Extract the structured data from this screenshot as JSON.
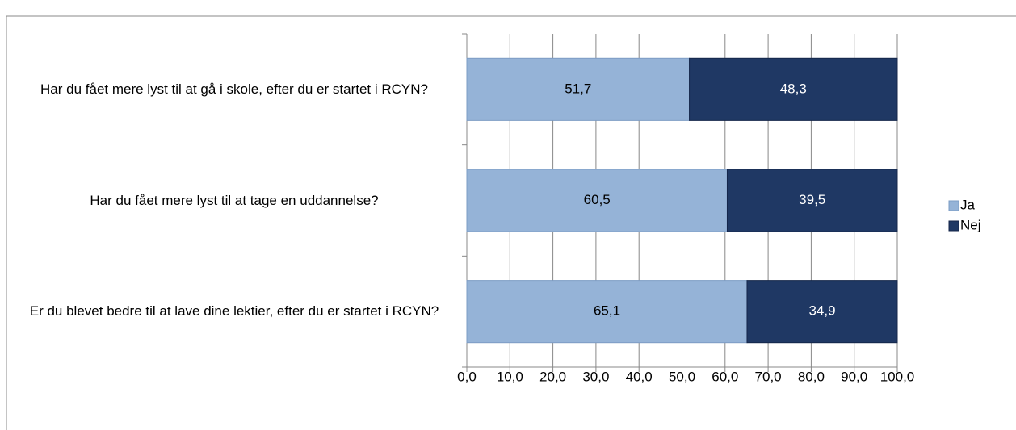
{
  "chart_data": {
    "type": "stacked_bar_horizontal",
    "categories": [
      "Har du fået mere lyst til at gå i skole, efter du er startet i RCYN?",
      "Har du fået mere lyst til at tage en uddannelse?",
      "Er du blevet bedre til at lave dine lektier, efter du er startet i RCYN?"
    ],
    "series": [
      {
        "name": "Ja",
        "color": "#95b3d7",
        "values": [
          51.7,
          60.5,
          65.1
        ],
        "value_labels": [
          "51,7",
          "60,5",
          "65,1"
        ]
      },
      {
        "name": "Nej",
        "color": "#1f3864",
        "values": [
          48.3,
          39.5,
          34.9
        ],
        "value_labels": [
          "48,3",
          "39,5",
          "34,9"
        ]
      }
    ],
    "xlim": [
      0,
      100
    ],
    "xticks": [
      {
        "value": 0,
        "label": "0,0"
      },
      {
        "value": 10,
        "label": "10,0"
      },
      {
        "value": 20,
        "label": "20,0"
      },
      {
        "value": 30,
        "label": "30,0"
      },
      {
        "value": 40,
        "label": "40,0"
      },
      {
        "value": 50,
        "label": "50,0"
      },
      {
        "value": 60,
        "label": "60,0"
      },
      {
        "value": 70,
        "label": "70,0"
      },
      {
        "value": 80,
        "label": "80,0"
      },
      {
        "value": 90,
        "label": "90,0"
      },
      {
        "value": 100,
        "label": "100,0"
      }
    ],
    "grid": true,
    "legend": "right"
  }
}
